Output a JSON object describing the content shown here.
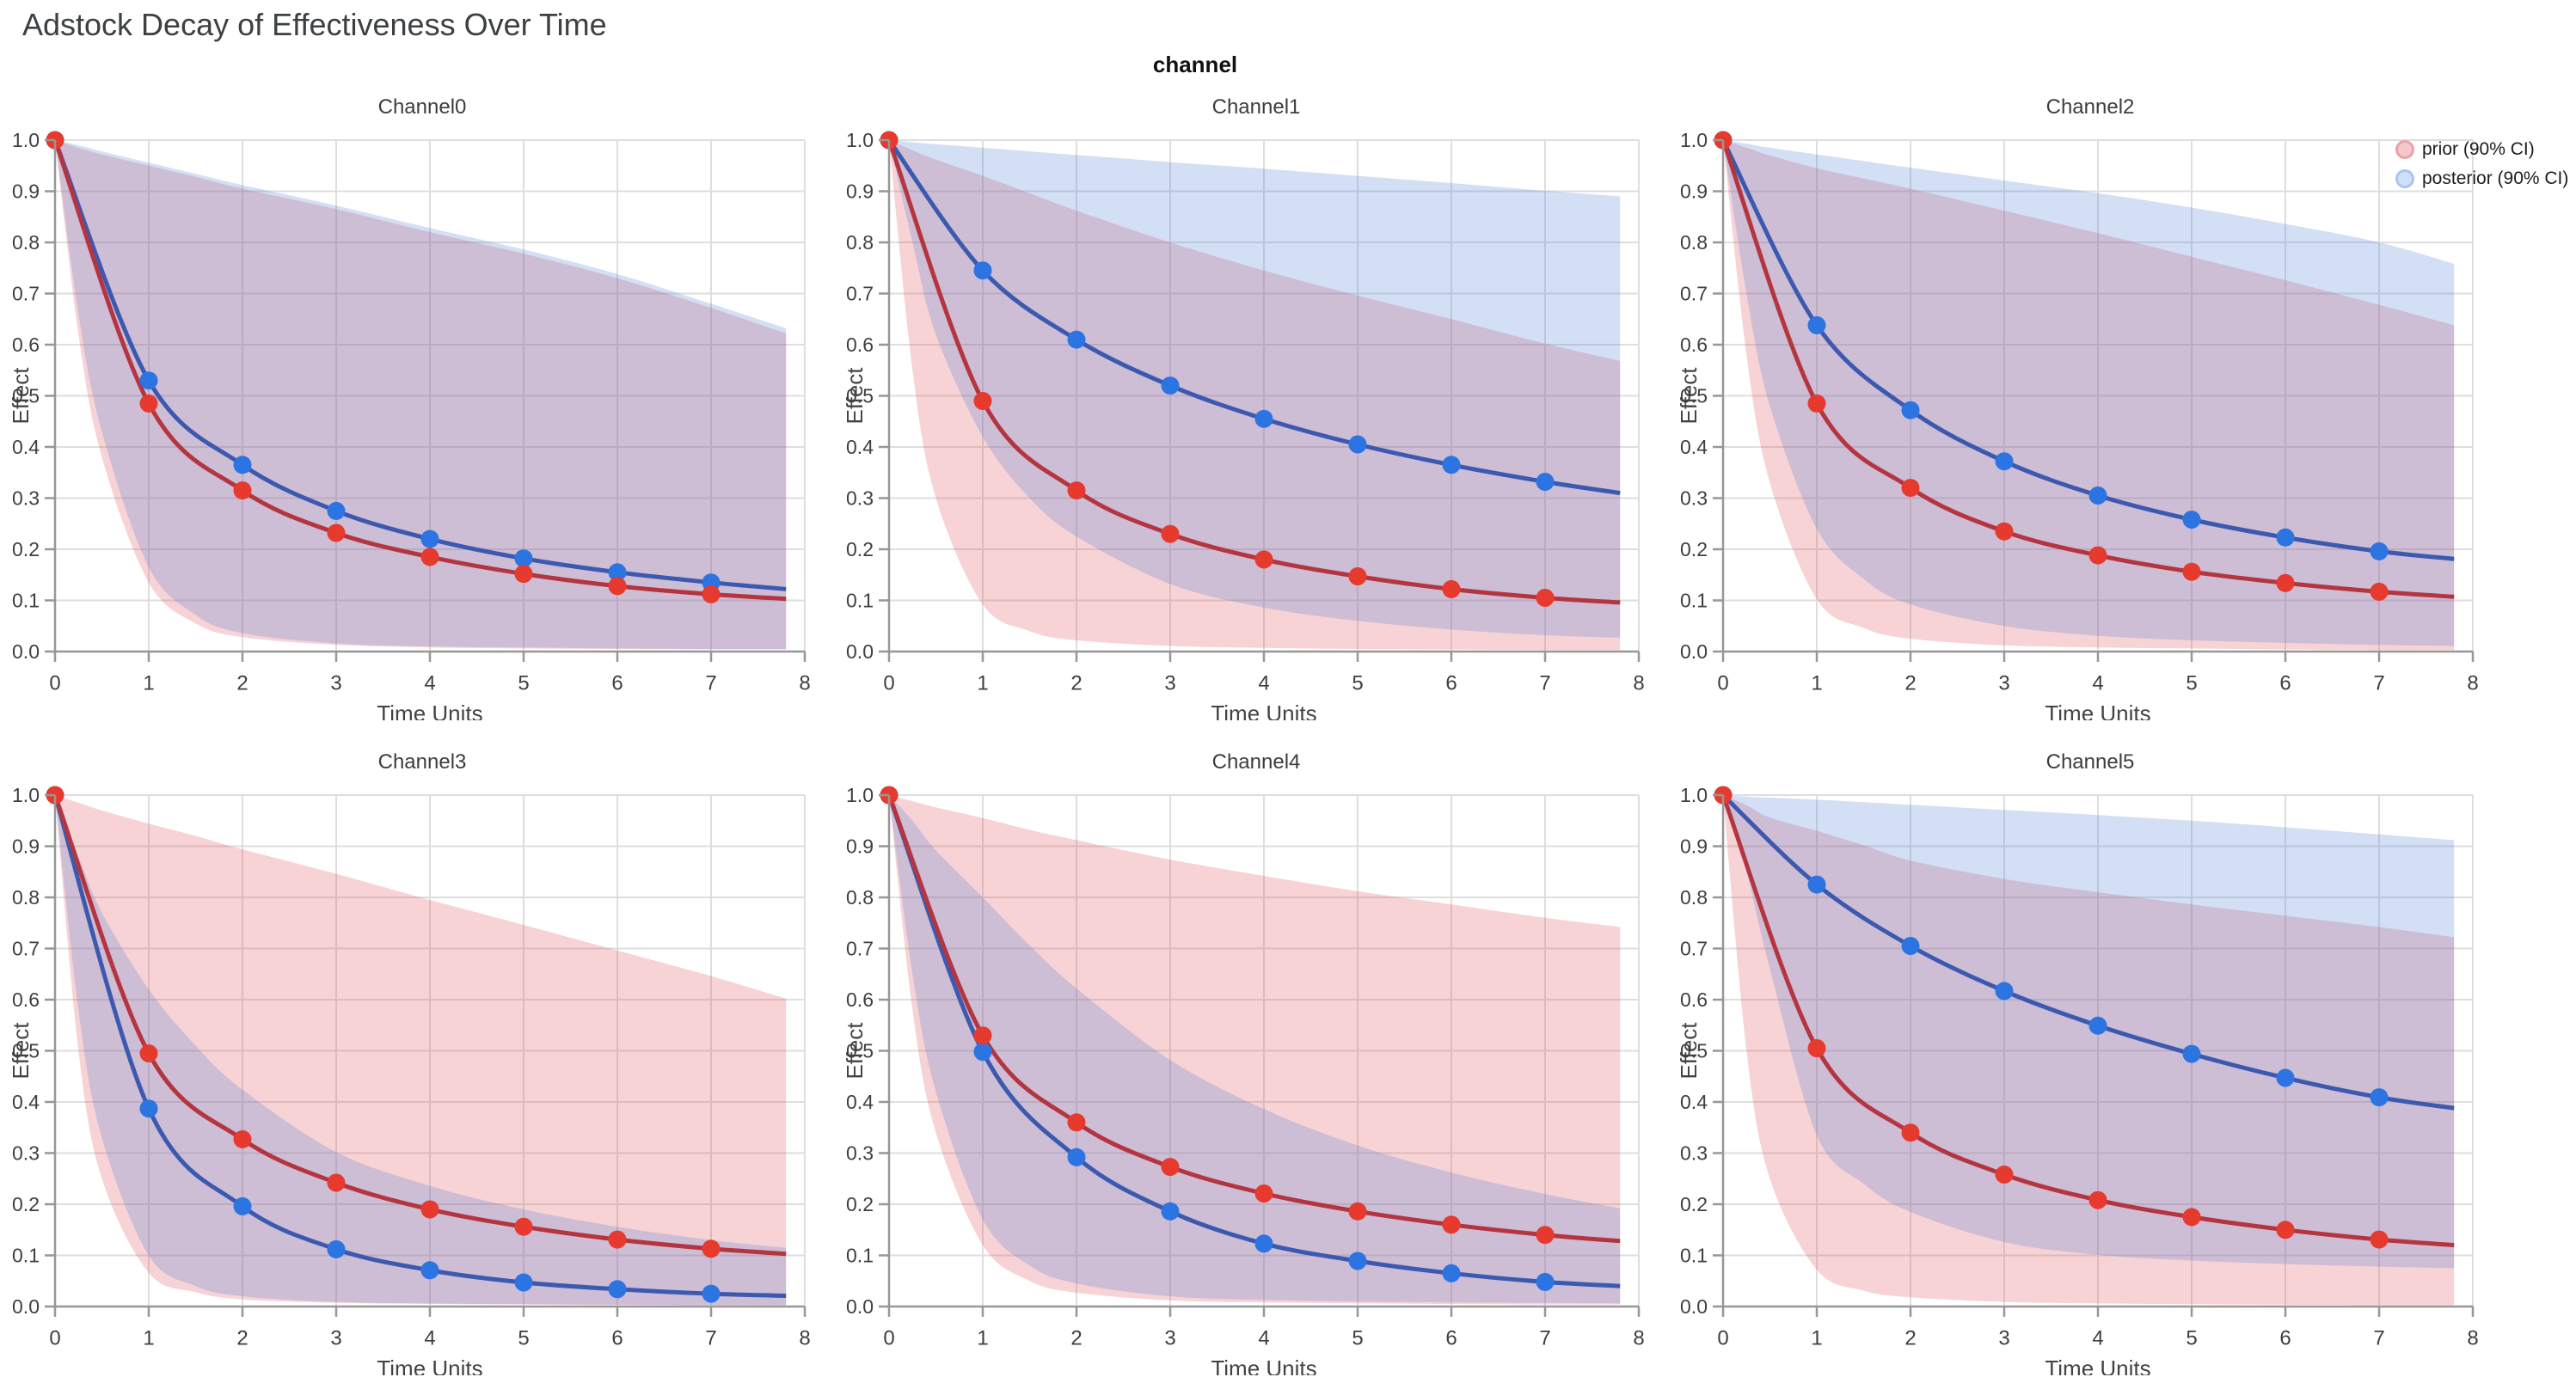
{
  "title": "Adstock Decay of Effectiveness Over Time",
  "facet_header": "channel",
  "axes": {
    "xlabel": "Time Units",
    "ylabel": "Effect",
    "x_ticks": [
      "0",
      "1",
      "2",
      "3",
      "4",
      "5",
      "6",
      "7",
      "8"
    ],
    "y_ticks": [
      "0.0",
      "0.1",
      "0.2",
      "0.3",
      "0.4",
      "0.5",
      "0.6",
      "0.7",
      "0.8",
      "0.9",
      "1.0"
    ],
    "x_range": [
      0,
      8
    ],
    "y_range": [
      0,
      1
    ],
    "grid": true
  },
  "legend": {
    "position": "top-right",
    "items": [
      {
        "label": "prior (90% CI)",
        "swatch_fill": "#f5c8cb",
        "swatch_stroke": "#eba2a8"
      },
      {
        "label": "posterior (90% CI)",
        "swatch_fill": "#cfdff7",
        "swatch_stroke": "#aac5ee"
      }
    ]
  },
  "style": {
    "prior_line": "#b43540",
    "prior_marker": "#e53a2d",
    "posterior_line": "#3c59b0",
    "posterior_marker": "#2b74e2",
    "prior_band_fill": "rgba(222,70,80,0.24)",
    "posterior_band_fill": "rgba(70,120,215,0.24)",
    "grid_color": "#dedede",
    "domain_color": "#979797",
    "tick_label_color": "#3f3f3f",
    "axis_title_color": "#434343",
    "title_color": "#3c4043"
  },
  "chart_data": [
    {
      "type": "line",
      "title": "Channel0",
      "x": [
        0,
        1,
        2,
        3,
        4,
        5,
        6,
        7,
        7.8
      ],
      "series": [
        {
          "name": "prior",
          "values": [
            1.0,
            0.485,
            0.315,
            0.232,
            0.185,
            0.152,
            0.128,
            0.112,
            0.103
          ]
        },
        {
          "name": "posterior",
          "values": [
            1.0,
            0.53,
            0.365,
            0.275,
            0.22,
            0.182,
            0.155,
            0.135,
            0.122
          ]
        }
      ],
      "bands": {
        "x": [
          0,
          0.25,
          0.5,
          1,
          1.5,
          2,
          3,
          4,
          5,
          6,
          7,
          7.8
        ],
        "prior": {
          "lower": [
            1,
            0.62,
            0.38,
            0.135,
            0.055,
            0.028,
            0.013,
            0.008,
            0.006,
            0.005,
            0.004,
            0.004
          ],
          "upper": [
            1,
            0.985,
            0.972,
            0.95,
            0.928,
            0.905,
            0.865,
            0.82,
            0.778,
            0.73,
            0.672,
            0.622
          ]
        },
        "posterior": {
          "lower": [
            1,
            0.66,
            0.43,
            0.165,
            0.072,
            0.036,
            0.016,
            0.01,
            0.008,
            0.006,
            0.005,
            0.005
          ],
          "upper": [
            1,
            0.99,
            0.978,
            0.956,
            0.934,
            0.912,
            0.872,
            0.828,
            0.786,
            0.738,
            0.68,
            0.632
          ]
        }
      }
    },
    {
      "type": "line",
      "title": "Channel1",
      "x": [
        0,
        1,
        2,
        3,
        4,
        5,
        6,
        7,
        7.8
      ],
      "series": [
        {
          "name": "prior",
          "values": [
            1.0,
            0.49,
            0.315,
            0.23,
            0.18,
            0.147,
            0.122,
            0.105,
            0.096
          ]
        },
        {
          "name": "posterior",
          "values": [
            1.0,
            0.745,
            0.61,
            0.52,
            0.455,
            0.405,
            0.365,
            0.332,
            0.31
          ]
        }
      ],
      "bands": {
        "x": [
          0,
          0.25,
          0.5,
          1,
          1.5,
          2,
          3,
          4,
          5,
          6,
          7,
          7.8
        ],
        "prior": {
          "lower": [
            1,
            0.55,
            0.3,
            0.092,
            0.04,
            0.022,
            0.011,
            0.007,
            0.005,
            0.004,
            0.003,
            0.003
          ],
          "upper": [
            1,
            0.98,
            0.962,
            0.93,
            0.896,
            0.862,
            0.8,
            0.745,
            0.696,
            0.65,
            0.602,
            0.568
          ]
        },
        "posterior": {
          "lower": [
            1,
            0.8,
            0.62,
            0.42,
            0.3,
            0.225,
            0.132,
            0.086,
            0.06,
            0.043,
            0.032,
            0.027
          ],
          "upper": [
            1,
            0.996,
            0.992,
            0.985,
            0.978,
            0.971,
            0.957,
            0.944,
            0.93,
            0.916,
            0.901,
            0.89
          ]
        }
      }
    },
    {
      "type": "line",
      "title": "Channel2",
      "x": [
        0,
        1,
        2,
        3,
        4,
        5,
        6,
        7,
        7.8
      ],
      "series": [
        {
          "name": "prior",
          "values": [
            1.0,
            0.485,
            0.32,
            0.235,
            0.188,
            0.156,
            0.134,
            0.117,
            0.107
          ]
        },
        {
          "name": "posterior",
          "values": [
            1.0,
            0.638,
            0.472,
            0.372,
            0.305,
            0.258,
            0.223,
            0.196,
            0.181
          ]
        }
      ],
      "bands": {
        "x": [
          0,
          0.25,
          0.5,
          1,
          1.5,
          2,
          3,
          4,
          5,
          6,
          7,
          7.8
        ],
        "prior": {
          "lower": [
            1,
            0.58,
            0.33,
            0.102,
            0.046,
            0.025,
            0.012,
            0.008,
            0.006,
            0.004,
            0.003,
            0.003
          ],
          "upper": [
            1,
            0.985,
            0.97,
            0.945,
            0.925,
            0.905,
            0.862,
            0.818,
            0.772,
            0.726,
            0.678,
            0.638
          ]
        },
        "posterior": {
          "lower": [
            1,
            0.7,
            0.48,
            0.24,
            0.142,
            0.092,
            0.05,
            0.031,
            0.022,
            0.017,
            0.013,
            0.011
          ],
          "upper": [
            1,
            0.993,
            0.985,
            0.972,
            0.959,
            0.946,
            0.921,
            0.896,
            0.868,
            0.836,
            0.8,
            0.758
          ]
        }
      }
    },
    {
      "type": "line",
      "title": "Channel3",
      "x": [
        0,
        1,
        2,
        3,
        4,
        5,
        6,
        7,
        7.8
      ],
      "series": [
        {
          "name": "prior",
          "values": [
            1.0,
            0.495,
            0.327,
            0.242,
            0.19,
            0.156,
            0.131,
            0.113,
            0.103
          ]
        },
        {
          "name": "posterior",
          "values": [
            1.0,
            0.387,
            0.196,
            0.112,
            0.071,
            0.047,
            0.034,
            0.025,
            0.021
          ]
        }
      ],
      "bands": {
        "x": [
          0,
          0.25,
          0.5,
          1,
          1.5,
          2,
          3,
          4,
          5,
          6,
          7,
          7.8
        ],
        "prior": {
          "lower": [
            1,
            0.5,
            0.25,
            0.066,
            0.028,
            0.014,
            0.007,
            0.005,
            0.004,
            0.003,
            0.0025,
            0.0025
          ],
          "upper": [
            1,
            0.985,
            0.97,
            0.944,
            0.92,
            0.894,
            0.846,
            0.795,
            0.746,
            0.696,
            0.646,
            0.602
          ]
        },
        "posterior": {
          "lower": [
            1,
            0.58,
            0.33,
            0.1,
            0.04,
            0.02,
            0.009,
            0.006,
            0.0045,
            0.0035,
            0.003,
            0.003
          ],
          "upper": [
            1,
            0.88,
            0.77,
            0.62,
            0.51,
            0.424,
            0.302,
            0.236,
            0.19,
            0.156,
            0.13,
            0.115
          ]
        }
      }
    },
    {
      "type": "line",
      "title": "Channel4",
      "x": [
        0,
        1,
        2,
        3,
        4,
        5,
        6,
        7,
        7.8
      ],
      "series": [
        {
          "name": "prior",
          "values": [
            1.0,
            0.53,
            0.36,
            0.273,
            0.221,
            0.186,
            0.16,
            0.14,
            0.128
          ]
        },
        {
          "name": "posterior",
          "values": [
            1.0,
            0.498,
            0.292,
            0.186,
            0.123,
            0.089,
            0.065,
            0.048,
            0.04
          ]
        }
      ],
      "bands": {
        "x": [
          0,
          0.25,
          0.5,
          1,
          1.5,
          2,
          3,
          4,
          5,
          6,
          7,
          7.8
        ],
        "prior": {
          "lower": [
            1,
            0.58,
            0.34,
            0.12,
            0.05,
            0.027,
            0.012,
            0.008,
            0.006,
            0.005,
            0.004,
            0.004
          ],
          "upper": [
            1,
            0.988,
            0.976,
            0.955,
            0.932,
            0.912,
            0.874,
            0.842,
            0.812,
            0.786,
            0.76,
            0.742
          ]
        },
        "posterior": {
          "lower": [
            1,
            0.65,
            0.42,
            0.17,
            0.08,
            0.045,
            0.02,
            0.013,
            0.01,
            0.008,
            0.007,
            0.006
          ],
          "upper": [
            1,
            0.95,
            0.892,
            0.8,
            0.706,
            0.622,
            0.482,
            0.386,
            0.315,
            0.262,
            0.22,
            0.192
          ]
        }
      }
    },
    {
      "type": "line",
      "title": "Channel5",
      "x": [
        0,
        1,
        2,
        3,
        4,
        5,
        6,
        7,
        7.8
      ],
      "series": [
        {
          "name": "prior",
          "values": [
            1.0,
            0.505,
            0.34,
            0.258,
            0.208,
            0.175,
            0.15,
            0.131,
            0.12
          ]
        },
        {
          "name": "posterior",
          "values": [
            1.0,
            0.825,
            0.705,
            0.617,
            0.549,
            0.494,
            0.447,
            0.409,
            0.388
          ]
        }
      ],
      "bands": {
        "x": [
          0,
          0.25,
          0.5,
          1,
          1.5,
          2,
          3,
          4,
          5,
          6,
          7,
          7.8
        ],
        "prior": {
          "lower": [
            1,
            0.5,
            0.25,
            0.072,
            0.031,
            0.018,
            0.009,
            0.006,
            0.0045,
            0.0035,
            0.003,
            0.0025
          ],
          "upper": [
            1,
            0.98,
            0.956,
            0.93,
            0.902,
            0.872,
            0.836,
            0.81,
            0.786,
            0.764,
            0.742,
            0.722
          ]
        },
        "posterior": {
          "lower": [
            1,
            0.85,
            0.66,
            0.335,
            0.24,
            0.185,
            0.126,
            0.101,
            0.09,
            0.083,
            0.078,
            0.075
          ],
          "upper": [
            1,
            0.997,
            0.995,
            0.991,
            0.986,
            0.981,
            0.971,
            0.961,
            0.95,
            0.937,
            0.923,
            0.912
          ]
        }
      }
    }
  ]
}
